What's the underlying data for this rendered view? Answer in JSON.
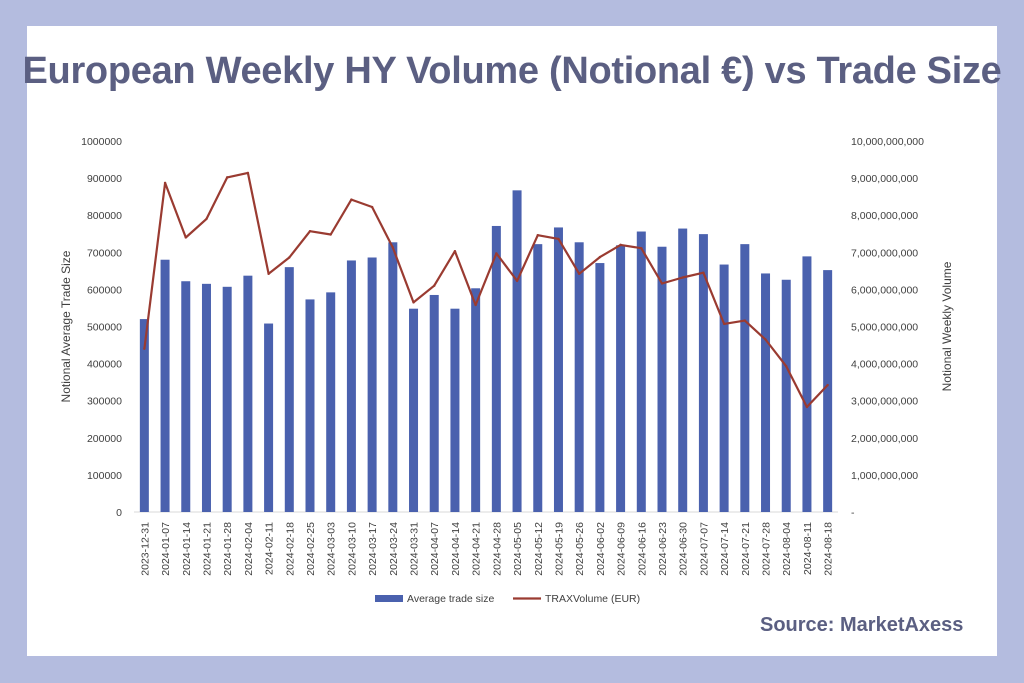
{
  "title": "European Weekly HY Volume (Notional €) vs Trade Size",
  "source": "Source: MarketAxess",
  "colors": {
    "bar": "#4a61ae",
    "line": "#9a3b31",
    "title": "#5b5f82",
    "background": "#b4bcdf"
  },
  "chart_data": {
    "type": "bar",
    "categories": [
      "2023-12-31",
      "2024-01-07",
      "2024-01-14",
      "2024-01-21",
      "2024-01-28",
      "2024-02-04",
      "2024-02-11",
      "2024-02-18",
      "2024-02-25",
      "2024-03-03",
      "2024-03-10",
      "2024-03-17",
      "2024-03-24",
      "2024-03-31",
      "2024-04-07",
      "2024-04-14",
      "2024-04-21",
      "2024-04-28",
      "2024-05-05",
      "2024-05-12",
      "2024-05-19",
      "2024-05-26",
      "2024-06-02",
      "2024-06-09",
      "2024-06-16",
      "2024-06-23",
      "2024-06-30",
      "2024-07-07",
      "2024-07-14",
      "2024-07-21",
      "2024-07-28",
      "2024-08-04",
      "2024-08-11",
      "2024-08-18"
    ],
    "series": [
      {
        "name": "Average trade size",
        "type": "bar",
        "axis": "left",
        "values": [
          520000,
          680000,
          622000,
          615000,
          607000,
          637000,
          508000,
          660000,
          573000,
          592000,
          678000,
          686000,
          727000,
          548000,
          585000,
          548000,
          603000,
          771000,
          867000,
          722000,
          767000,
          727000,
          671000,
          719000,
          756000,
          715000,
          764000,
          749000,
          667000,
          722000,
          643000,
          626000,
          689000,
          652000
        ]
      },
      {
        "name": "TRAXVolume  (EUR)",
        "type": "line",
        "axis": "right",
        "values": [
          4400000000,
          8870000000,
          7400000000,
          7900000000,
          9020000000,
          9140000000,
          6420000000,
          6860000000,
          7570000000,
          7480000000,
          8420000000,
          8220000000,
          7130000000,
          5650000000,
          6100000000,
          7030000000,
          5580000000,
          6970000000,
          6230000000,
          7460000000,
          7360000000,
          6420000000,
          6870000000,
          7200000000,
          7110000000,
          6160000000,
          6320000000,
          6450000000,
          5070000000,
          5160000000,
          4650000000,
          3930000000,
          2830000000,
          3420000000
        ]
      }
    ],
    "y_left": {
      "label": "Notional Average Trade Size",
      "lim": [
        0,
        1000000
      ],
      "ticks": [
        "0",
        "100000",
        "200000",
        "300000",
        "400000",
        "500000",
        "600000",
        "700000",
        "800000",
        "900000",
        "1000000"
      ]
    },
    "y_right": {
      "label": "Notional Weekly Volume",
      "lim": [
        0,
        10000000000
      ],
      "ticks": [
        "-",
        "1,000,000,000",
        "2,000,000,000",
        "3,000,000,000",
        "4,000,000,000",
        "5,000,000,000",
        "6,000,000,000",
        "7,000,000,000",
        "8,000,000,000",
        "9,000,000,000",
        "10,000,000,000"
      ]
    },
    "grid": false,
    "legend_position": "bottom"
  }
}
